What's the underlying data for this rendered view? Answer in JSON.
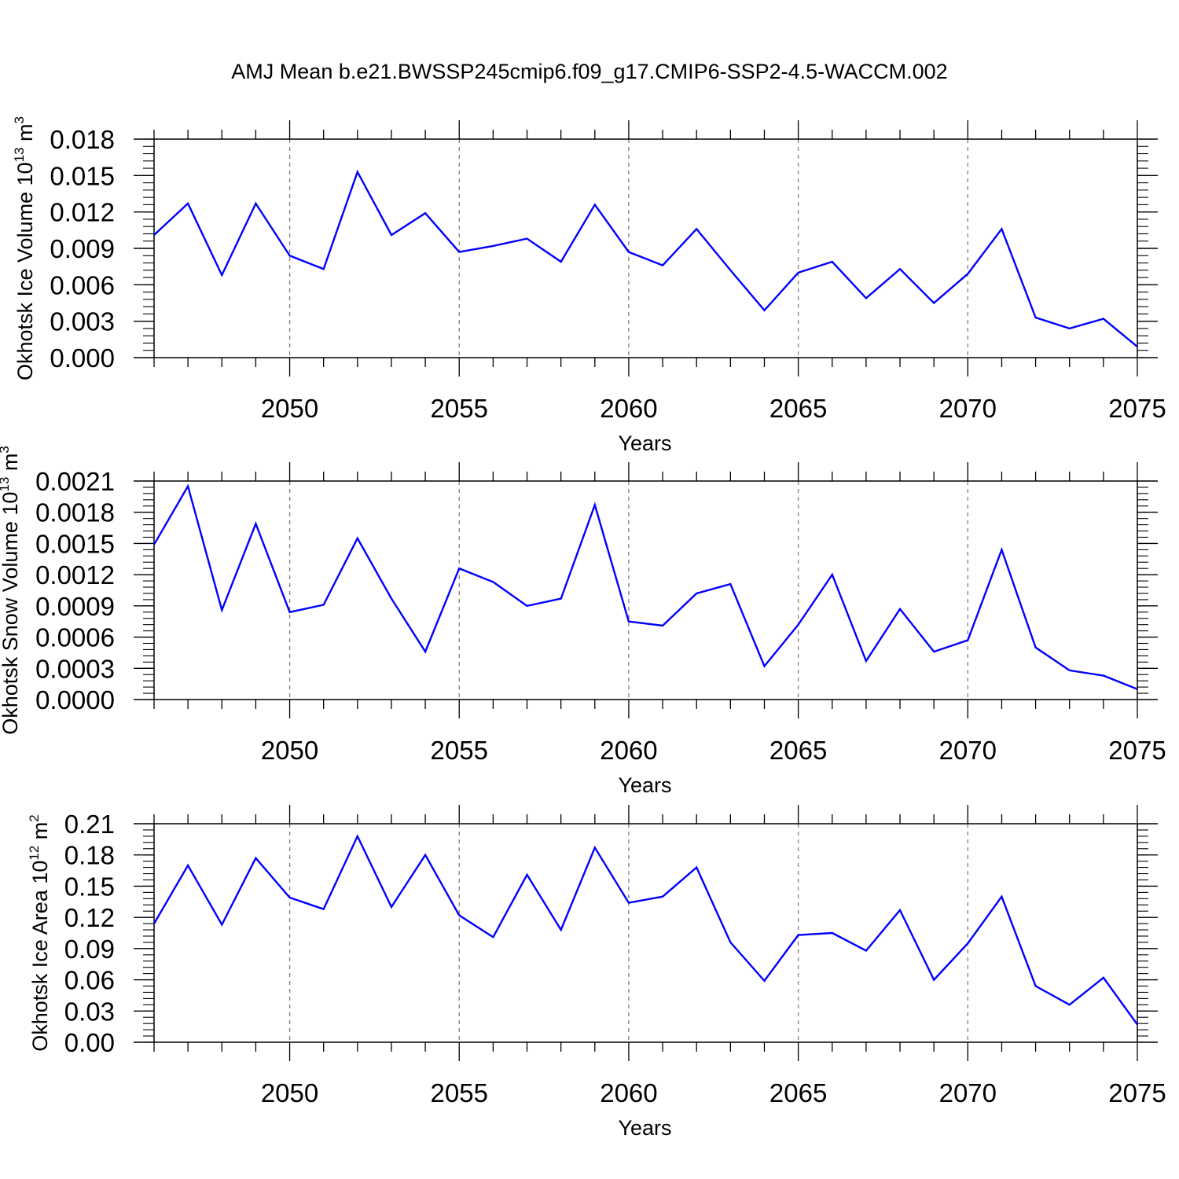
{
  "title": "AMJ Mean b.e21.BWSSP245cmip6.f09_g17.CMIP6-SSP2-4.5-WACCM.002",
  "colors": {
    "line": "#0000ff",
    "axis": "#000000",
    "grid": "#7f7f7f"
  },
  "chart_data": [
    {
      "type": "line",
      "title": "",
      "xlabel": "Years",
      "ylabel_main": "Okhotsk Ice Volume 10",
      "ylabel_sup": "13",
      "ylabel_tail": " m",
      "ylabel_tail_sup": "3",
      "xlim": [
        2046,
        2075
      ],
      "ylim": [
        0,
        0.018
      ],
      "grid": "vertical dashed at major x ticks",
      "x_ticks": [
        2050,
        2055,
        2060,
        2065,
        2070,
        2075
      ],
      "x_tick_labels": [
        "2050",
        "2055",
        "2060",
        "2065",
        "2070",
        "2075"
      ],
      "y_ticks": [
        0,
        0.003,
        0.006,
        0.009,
        0.012,
        0.015,
        0.018
      ],
      "y_tick_labels": [
        "0.000",
        "0.003",
        "0.006",
        "0.009",
        "0.012",
        "0.015",
        "0.018"
      ],
      "y_minor_step": 0.0006,
      "x": [
        2046,
        2047,
        2048,
        2049,
        2050,
        2051,
        2052,
        2053,
        2054,
        2055,
        2056,
        2057,
        2058,
        2059,
        2060,
        2061,
        2062,
        2063,
        2064,
        2065,
        2066,
        2067,
        2068,
        2069,
        2070,
        2071,
        2072,
        2073,
        2074,
        2075
      ],
      "series": [
        {
          "values": [
            0.0101,
            0.0127,
            0.0068,
            0.0127,
            0.0084,
            0.0073,
            0.0153,
            0.0101,
            0.0119,
            0.0087,
            0.0092,
            0.0098,
            0.0079,
            0.0126,
            0.0087,
            0.0076,
            0.0106,
            0.0072,
            0.0039,
            0.007,
            0.0079,
            0.0049,
            0.0073,
            0.0045,
            0.0069,
            0.0106,
            0.0033,
            0.0024,
            0.0032,
            0.0009
          ]
        }
      ]
    },
    {
      "type": "line",
      "title": "",
      "xlabel": "Years",
      "ylabel_main": "Okhotsk Snow Volume 10",
      "ylabel_sup": "13",
      "ylabel_tail": " m",
      "ylabel_tail_sup": "3",
      "xlim": [
        2046,
        2075
      ],
      "ylim": [
        0,
        0.0021
      ],
      "grid": "vertical dashed at major x ticks",
      "x_ticks": [
        2050,
        2055,
        2060,
        2065,
        2070,
        2075
      ],
      "x_tick_labels": [
        "2050",
        "2055",
        "2060",
        "2065",
        "2070",
        "2075"
      ],
      "y_ticks": [
        0,
        0.0003,
        0.0006,
        0.0009,
        0.0012,
        0.0015,
        0.0018,
        0.0021
      ],
      "y_tick_labels": [
        "0.0000",
        "0.0003",
        "0.0006",
        "0.0009",
        "0.0012",
        "0.0015",
        "0.0018",
        "0.0021"
      ],
      "y_minor_step": 6e-05,
      "x": [
        2046,
        2047,
        2048,
        2049,
        2050,
        2051,
        2052,
        2053,
        2054,
        2055,
        2056,
        2057,
        2058,
        2059,
        2060,
        2061,
        2062,
        2063,
        2064,
        2065,
        2066,
        2067,
        2068,
        2069,
        2070,
        2071,
        2072,
        2073,
        2074,
        2075
      ],
      "series": [
        {
          "values": [
            0.00149,
            0.00205,
            0.00086,
            0.00169,
            0.00084,
            0.00091,
            0.00155,
            0.00097,
            0.00046,
            0.00126,
            0.00113,
            0.0009,
            0.00097,
            0.00187,
            0.00075,
            0.00071,
            0.00102,
            0.00111,
            0.00032,
            0.00072,
            0.0012,
            0.00037,
            0.00087,
            0.00046,
            0.00057,
            0.00144,
            0.0005,
            0.00028,
            0.00023,
            0.0001
          ]
        }
      ]
    },
    {
      "type": "line",
      "title": "",
      "xlabel": "Years",
      "ylabel_main": "Okhotsk Ice Area 10",
      "ylabel_sup": "12",
      "ylabel_tail": " m",
      "ylabel_tail_sup": "2",
      "xlim": [
        2046,
        2075
      ],
      "ylim": [
        0,
        0.21
      ],
      "grid": "vertical dashed at major x ticks",
      "x_ticks": [
        2050,
        2055,
        2060,
        2065,
        2070,
        2075
      ],
      "x_tick_labels": [
        "2050",
        "2055",
        "2060",
        "2065",
        "2070",
        "2075"
      ],
      "y_ticks": [
        0,
        0.03,
        0.06,
        0.09,
        0.12,
        0.15,
        0.18,
        0.21
      ],
      "y_tick_labels": [
        "0.00",
        "0.03",
        "0.06",
        "0.09",
        "0.12",
        "0.15",
        "0.18",
        "0.21"
      ],
      "y_minor_step": 0.006,
      "x": [
        2046,
        2047,
        2048,
        2049,
        2050,
        2051,
        2052,
        2053,
        2054,
        2055,
        2056,
        2057,
        2058,
        2059,
        2060,
        2061,
        2062,
        2063,
        2064,
        2065,
        2066,
        2067,
        2068,
        2069,
        2070,
        2071,
        2072,
        2073,
        2074,
        2075
      ],
      "series": [
        {
          "values": [
            0.114,
            0.17,
            0.113,
            0.177,
            0.139,
            0.128,
            0.198,
            0.13,
            0.18,
            0.122,
            0.101,
            0.161,
            0.108,
            0.187,
            0.134,
            0.14,
            0.168,
            0.096,
            0.059,
            0.103,
            0.105,
            0.088,
            0.127,
            0.06,
            0.095,
            0.14,
            0.054,
            0.036,
            0.062,
            0.017
          ]
        }
      ]
    }
  ]
}
